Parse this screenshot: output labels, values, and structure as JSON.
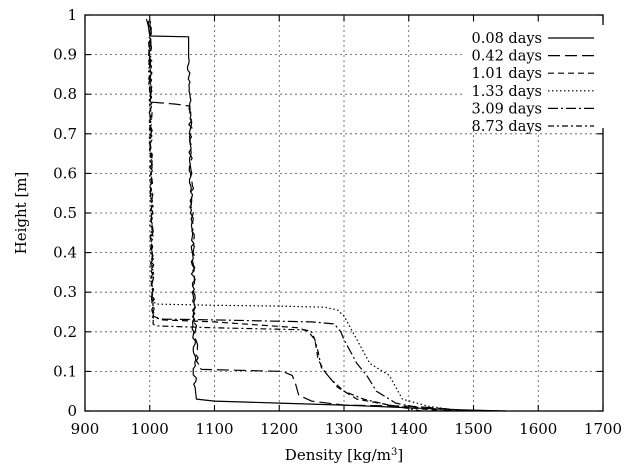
{
  "chart_data": {
    "type": "line",
    "title": "",
    "xlabel_main": "Density [kg/m",
    "xlabel_sup": "3",
    "xlabel_end": "]",
    "ylabel": "Height [m]",
    "xlim": [
      900,
      1700
    ],
    "ylim": [
      0,
      1
    ],
    "xticks": [
      900,
      1000,
      1100,
      1200,
      1300,
      1400,
      1500,
      1600,
      1700
    ],
    "yticks": [
      0,
      0.1,
      0.2,
      0.3,
      0.4,
      0.5,
      0.6,
      0.7,
      0.8,
      0.9,
      1
    ],
    "xtick_labels": [
      "900",
      "1000",
      "1100",
      "1200",
      "1300",
      "1400",
      "1500",
      "1600",
      "1700"
    ],
    "ytick_labels": [
      "0",
      "0.1",
      "0.2",
      "0.3",
      "0.4",
      "0.5",
      "0.6",
      "0.7",
      "0.8",
      "0.9",
      "1"
    ],
    "grid": true,
    "legend_position": "top-right",
    "series": [
      {
        "name": "0.08 days",
        "dash": "",
        "points": [
          [
            1550,
            0.0
          ],
          [
            1480,
            0.003
          ],
          [
            1400,
            0.008
          ],
          [
            1300,
            0.015
          ],
          [
            1200,
            0.02
          ],
          [
            1100,
            0.025
          ],
          [
            1072,
            0.03
          ],
          [
            1070,
            0.06
          ],
          [
            1068,
            0.2
          ],
          [
            1066,
            0.4
          ],
          [
            1063,
            0.6
          ],
          [
            1062,
            0.8
          ],
          [
            1060,
            0.9
          ],
          [
            1060,
            0.945
          ],
          [
            1000,
            0.947
          ],
          [
            998,
            0.97
          ],
          [
            995,
            0.99
          ]
        ]
      },
      {
        "name": "0.42 days",
        "dash": "12 5",
        "points": [
          [
            1490,
            0.0
          ],
          [
            1460,
            0.005
          ],
          [
            1420,
            0.01
          ],
          [
            1400,
            0.012
          ],
          [
            1300,
            0.015
          ],
          [
            1250,
            0.025
          ],
          [
            1230,
            0.04
          ],
          [
            1225,
            0.07
          ],
          [
            1220,
            0.09
          ],
          [
            1205,
            0.1
          ],
          [
            1080,
            0.105
          ],
          [
            1075,
            0.11
          ],
          [
            1070,
            0.2
          ],
          [
            1067,
            0.4
          ],
          [
            1065,
            0.6
          ],
          [
            1063,
            0.7
          ],
          [
            1062,
            0.77
          ],
          [
            1040,
            0.775
          ],
          [
            1002,
            0.78
          ],
          [
            1001,
            0.9
          ],
          [
            1000,
            0.99
          ]
        ]
      },
      {
        "name": "1.01 days",
        "dash": "6 4",
        "points": [
          [
            1460,
            0.0
          ],
          [
            1420,
            0.005
          ],
          [
            1380,
            0.012
          ],
          [
            1320,
            0.03
          ],
          [
            1290,
            0.06
          ],
          [
            1270,
            0.1
          ],
          [
            1260,
            0.13
          ],
          [
            1255,
            0.18
          ],
          [
            1245,
            0.2
          ],
          [
            1230,
            0.21
          ],
          [
            1100,
            0.225
          ],
          [
            1020,
            0.23
          ],
          [
            1005,
            0.24
          ],
          [
            1003,
            0.4
          ],
          [
            1002,
            0.6
          ],
          [
            1001,
            0.8
          ],
          [
            1000,
            0.99
          ]
        ]
      },
      {
        "name": "1.33 days",
        "dash": "1.5 2.5",
        "points": [
          [
            1500,
            0.0
          ],
          [
            1460,
            0.005
          ],
          [
            1430,
            0.012
          ],
          [
            1390,
            0.03
          ],
          [
            1380,
            0.06
          ],
          [
            1370,
            0.09
          ],
          [
            1340,
            0.12
          ],
          [
            1330,
            0.15
          ],
          [
            1320,
            0.18
          ],
          [
            1310,
            0.21
          ],
          [
            1300,
            0.24
          ],
          [
            1290,
            0.255
          ],
          [
            1270,
            0.262
          ],
          [
            1200,
            0.265
          ],
          [
            1100,
            0.267
          ],
          [
            1010,
            0.27
          ],
          [
            1003,
            0.28
          ],
          [
            1002,
            0.5
          ],
          [
            1001,
            0.8
          ],
          [
            1000,
            0.99
          ]
        ]
      },
      {
        "name": "3.09 days",
        "dash": "10 3 2 3",
        "points": [
          [
            1470,
            0.0
          ],
          [
            1440,
            0.005
          ],
          [
            1410,
            0.01
          ],
          [
            1380,
            0.02
          ],
          [
            1350,
            0.05
          ],
          [
            1335,
            0.09
          ],
          [
            1320,
            0.12
          ],
          [
            1310,
            0.15
          ],
          [
            1300,
            0.18
          ],
          [
            1295,
            0.2
          ],
          [
            1285,
            0.22
          ],
          [
            1250,
            0.225
          ],
          [
            1100,
            0.23
          ],
          [
            1020,
            0.232
          ],
          [
            1005,
            0.235
          ],
          [
            1004,
            0.4
          ],
          [
            1002,
            0.6
          ],
          [
            1001,
            0.8
          ],
          [
            1000,
            0.99
          ]
        ]
      },
      {
        "name": "8.73 days",
        "dash": "6 3 2 3",
        "points": [
          [
            1420,
            0.0
          ],
          [
            1400,
            0.006
          ],
          [
            1370,
            0.015
          ],
          [
            1330,
            0.03
          ],
          [
            1300,
            0.05
          ],
          [
            1280,
            0.08
          ],
          [
            1265,
            0.11
          ],
          [
            1260,
            0.15
          ],
          [
            1255,
            0.18
          ],
          [
            1250,
            0.2
          ],
          [
            1240,
            0.205
          ],
          [
            1100,
            0.21
          ],
          [
            1010,
            0.215
          ],
          [
            1005,
            0.22
          ],
          [
            1003,
            0.4
          ],
          [
            1002,
            0.6
          ],
          [
            1001,
            0.8
          ],
          [
            1000,
            0.99
          ]
        ]
      }
    ]
  }
}
